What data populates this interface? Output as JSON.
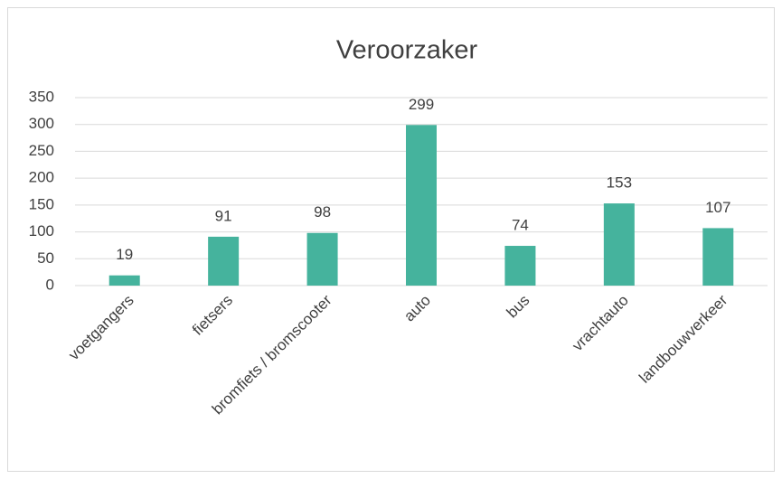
{
  "chart_data": {
    "type": "bar",
    "title": "Veroorzaker",
    "categories": [
      "voetgangers",
      "fietsers",
      "bromfiets / bromscooter",
      "auto",
      "bus",
      "vrachtauto",
      "landbouwverkeer"
    ],
    "values": [
      19,
      91,
      98,
      299,
      74,
      153,
      107
    ],
    "color": "#45b39d",
    "ylim": [
      0,
      350
    ],
    "yticks": [
      0,
      50,
      100,
      150,
      200,
      250,
      300,
      350
    ],
    "grid": true
  }
}
